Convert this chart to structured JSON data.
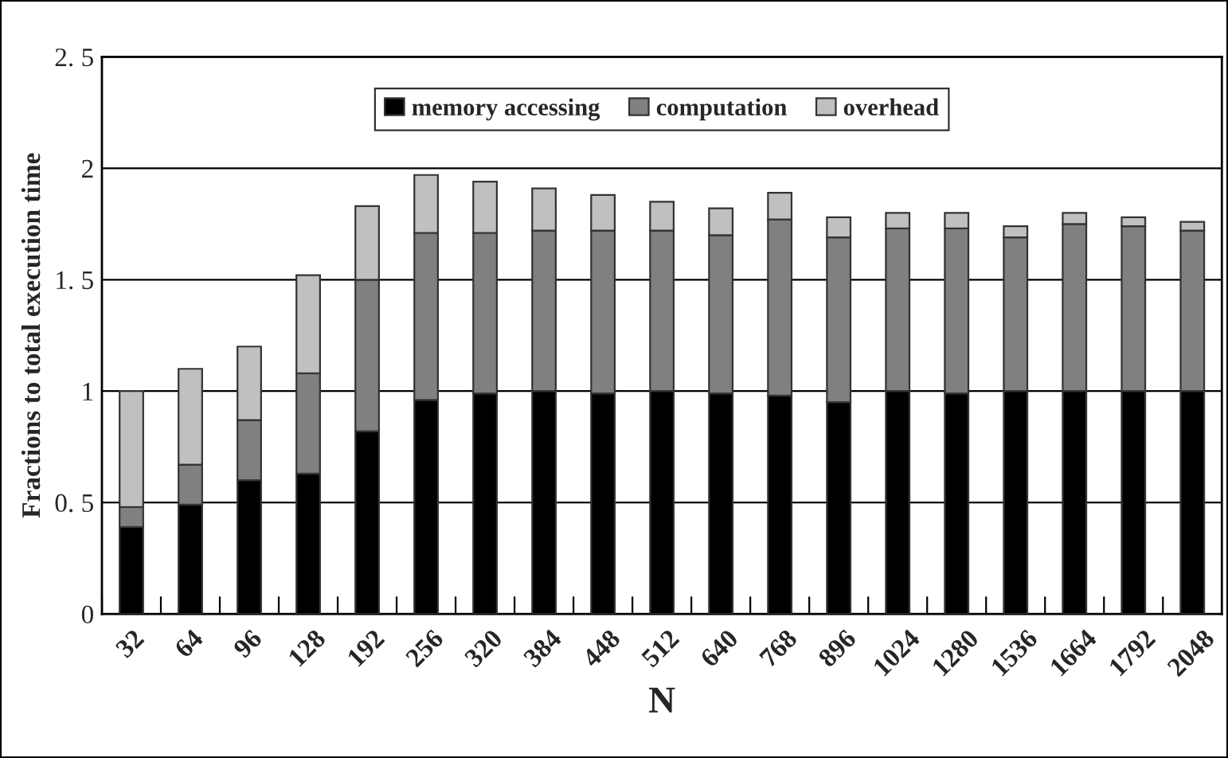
{
  "chart_data": {
    "type": "bar",
    "stacked": true,
    "xlabel": "N",
    "ylabel": "Fractions to total execution time",
    "categories": [
      "32",
      "64",
      "96",
      "128",
      "192",
      "256",
      "320",
      "384",
      "448",
      "512",
      "640",
      "768",
      "896",
      "1024",
      "1280",
      "1536",
      "1664",
      "1792",
      "2048"
    ],
    "series": [
      {
        "name": "memory accessing",
        "color": "#000000",
        "values": [
          0.39,
          0.49,
          0.6,
          0.63,
          0.82,
          0.96,
          0.99,
          1.0,
          0.99,
          1.0,
          0.99,
          0.98,
          0.95,
          1.0,
          0.99,
          1.0,
          1.0,
          1.0,
          1.0
        ]
      },
      {
        "name": "computation",
        "color": "#808080",
        "values": [
          0.09,
          0.18,
          0.27,
          0.45,
          0.68,
          0.75,
          0.72,
          0.72,
          0.73,
          0.72,
          0.71,
          0.79,
          0.74,
          0.73,
          0.74,
          0.69,
          0.75,
          0.74,
          0.72
        ]
      },
      {
        "name": "overhead",
        "color": "#c0c0c0",
        "values": [
          0.52,
          0.43,
          0.33,
          0.44,
          0.33,
          0.26,
          0.23,
          0.19,
          0.16,
          0.13,
          0.12,
          0.12,
          0.09,
          0.07,
          0.07,
          0.05,
          0.05,
          0.04,
          0.04
        ]
      }
    ],
    "ylim": [
      0,
      2.5
    ],
    "yticks": [
      0,
      {
        "value": 0.5,
        "label": "0. 5"
      },
      1,
      {
        "value": 1.5,
        "label": "1. 5"
      },
      2,
      {
        "value": 2.5,
        "label": "2. 5"
      }
    ],
    "grid": "y",
    "legend": "top"
  }
}
